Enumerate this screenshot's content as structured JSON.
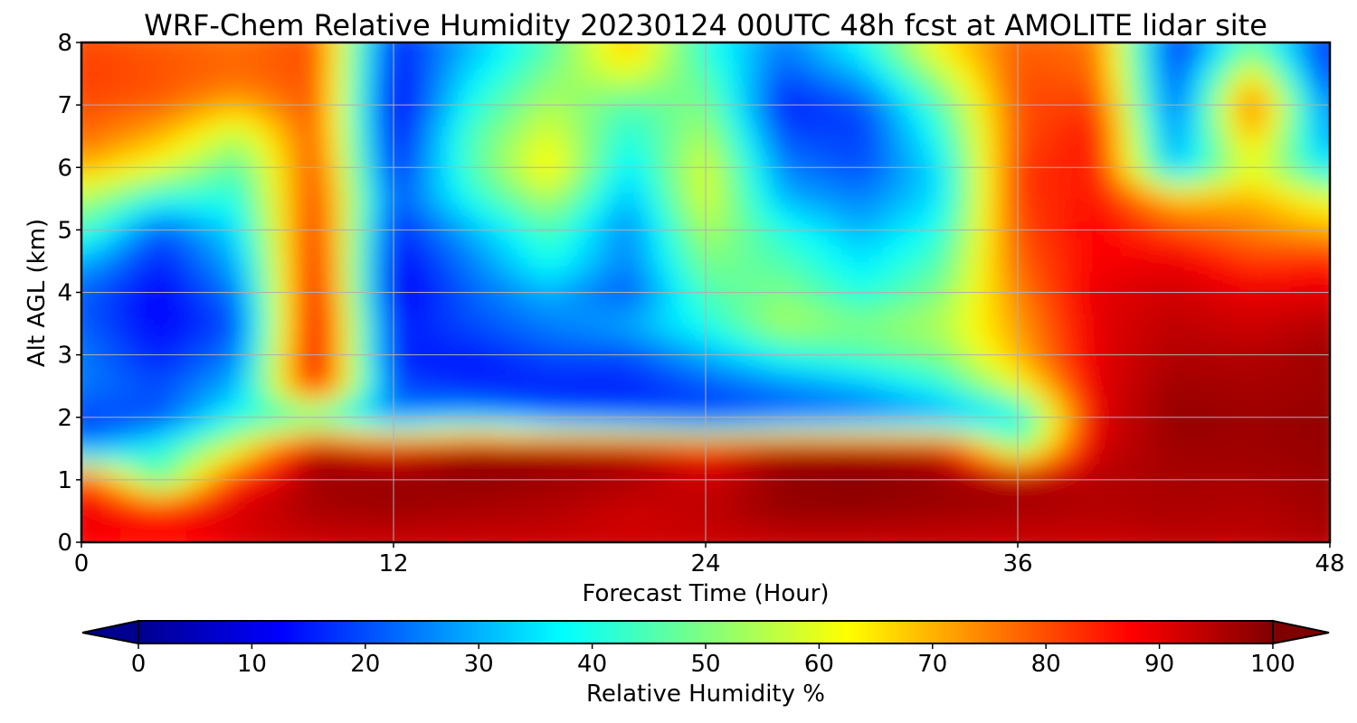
{
  "chart_data": {
    "type": "heatmap",
    "title": "WRF-Chem Relative Humidity 20230124 00UTC 48h fcst at AMOLITE lidar site",
    "xlabel": "Forecast Time (Hour)",
    "ylabel": "Alt AGL (km)",
    "xlim": [
      0,
      48
    ],
    "ylim": [
      0,
      8
    ],
    "x_ticks": [
      "0",
      "12",
      "24",
      "36",
      "48"
    ],
    "y_ticks": [
      "0",
      "1",
      "2",
      "3",
      "4",
      "5",
      "6",
      "7",
      "8"
    ],
    "grid": true,
    "colorbar": {
      "label": "Relative Humidity %",
      "orientation": "horizontal",
      "ticks": [
        "0",
        "10",
        "20",
        "30",
        "40",
        "50",
        "60",
        "70",
        "80",
        "90",
        "100"
      ],
      "range": [
        0,
        100
      ],
      "extend": "both",
      "colormap": "jet"
    },
    "x_hours": [
      0,
      3,
      6,
      9,
      12,
      15,
      18,
      21,
      24,
      27,
      30,
      33,
      36,
      39,
      42,
      45,
      48
    ],
    "z_km": [
      0,
      0.5,
      1,
      1.5,
      2,
      2.5,
      3,
      3.5,
      4,
      4.5,
      5,
      5.5,
      6,
      6.5,
      7,
      7.5,
      8
    ],
    "values": [
      [
        88,
        85,
        90,
        92,
        92,
        92,
        92,
        92,
        92,
        92,
        92,
        92,
        92,
        92,
        93,
        93,
        95
      ],
      [
        90,
        88,
        92,
        96,
        97,
        96,
        95,
        92,
        94,
        98,
        98,
        97,
        96,
        95,
        96,
        95,
        97
      ],
      [
        86,
        45,
        85,
        97,
        98,
        98,
        97,
        96,
        92,
        98,
        99,
        98,
        97,
        95,
        96,
        96,
        97
      ],
      [
        25,
        40,
        60,
        96,
        90,
        99,
        98,
        95,
        88,
        97,
        97,
        93,
        50,
        92,
        97,
        97,
        98
      ],
      [
        18,
        20,
        40,
        40,
        25,
        30,
        22,
        20,
        18,
        20,
        22,
        25,
        35,
        90,
        98,
        97,
        98
      ],
      [
        25,
        20,
        30,
        90,
        20,
        15,
        15,
        15,
        20,
        25,
        30,
        40,
        60,
        90,
        97,
        96,
        97
      ],
      [
        25,
        15,
        25,
        92,
        15,
        15,
        20,
        20,
        30,
        40,
        45,
        50,
        70,
        90,
        95,
        95,
        97
      ],
      [
        22,
        12,
        20,
        92,
        15,
        20,
        25,
        30,
        40,
        55,
        50,
        55,
        72,
        90,
        94,
        92,
        95
      ],
      [
        22,
        12,
        25,
        90,
        10,
        22,
        30,
        20,
        45,
        50,
        40,
        50,
        75,
        90,
        92,
        90,
        90
      ],
      [
        30,
        15,
        30,
        88,
        12,
        25,
        40,
        25,
        50,
        45,
        35,
        45,
        78,
        88,
        90,
        82,
        85
      ],
      [
        45,
        20,
        35,
        86,
        15,
        30,
        45,
        25,
        55,
        40,
        30,
        40,
        80,
        88,
        80,
        75,
        70
      ],
      [
        55,
        40,
        40,
        84,
        20,
        40,
        55,
        30,
        60,
        30,
        25,
        35,
        82,
        86,
        70,
        70,
        60
      ],
      [
        70,
        60,
        45,
        82,
        15,
        45,
        65,
        35,
        60,
        25,
        20,
        35,
        82,
        86,
        30,
        60,
        35
      ],
      [
        78,
        70,
        55,
        80,
        12,
        45,
        60,
        40,
        55,
        20,
        18,
        40,
        80,
        86,
        25,
        70,
        25
      ],
      [
        80,
        78,
        70,
        80,
        10,
        40,
        55,
        45,
        50,
        15,
        20,
        45,
        80,
        82,
        20,
        80,
        22
      ],
      [
        82,
        80,
        78,
        80,
        12,
        35,
        50,
        60,
        45,
        20,
        30,
        55,
        80,
        78,
        18,
        65,
        15
      ],
      [
        80,
        78,
        76,
        80,
        15,
        30,
        45,
        70,
        40,
        25,
        40,
        65,
        78,
        76,
        15,
        45,
        15
      ]
    ]
  }
}
